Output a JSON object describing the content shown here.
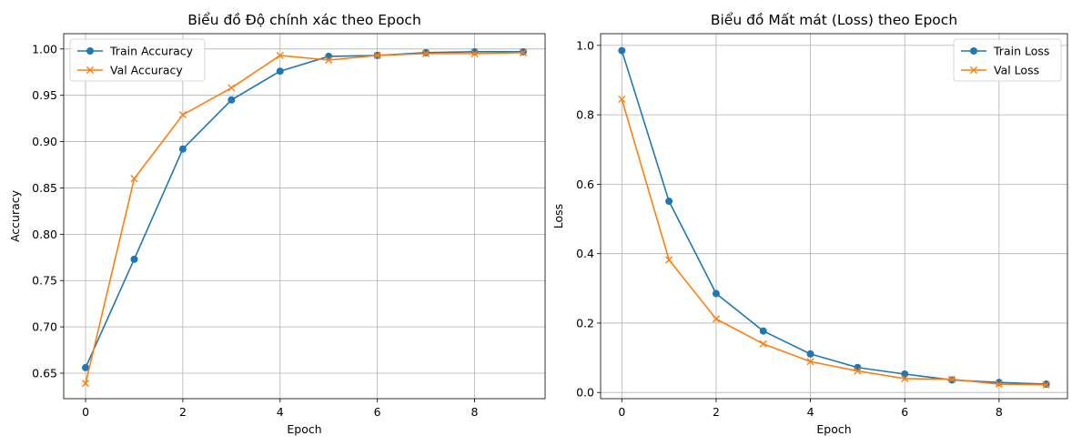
{
  "chart_data": [
    {
      "type": "line",
      "title": "Biểu đồ Độ chính xác theo Epoch",
      "xlabel": "Epoch",
      "ylabel": "Accuracy",
      "xlim": [
        -0.45,
        9.45
      ],
      "ylim": [
        0.6225,
        1.0165
      ],
      "xticks": [
        0,
        2,
        4,
        6,
        8
      ],
      "xtick_labels": [
        "0",
        "2",
        "4",
        "6",
        "8"
      ],
      "yticks": [
        0.65,
        0.7,
        0.75,
        0.8,
        0.85,
        0.9,
        0.95,
        1.0
      ],
      "ytick_labels": [
        "0.65",
        "0.70",
        "0.75",
        "0.80",
        "0.85",
        "0.90",
        "0.95",
        "1.00"
      ],
      "grid": true,
      "legend_position": "top-left",
      "x": [
        0,
        1,
        2,
        3,
        4,
        5,
        6,
        7,
        8,
        9
      ],
      "series": [
        {
          "name": "Train Accuracy",
          "color": "#1f77b4",
          "marker": "circle",
          "values": [
            0.656,
            0.773,
            0.892,
            0.945,
            0.976,
            0.992,
            0.993,
            0.996,
            0.997,
            0.997
          ]
        },
        {
          "name": "Val Accuracy",
          "color": "#ff7f0e",
          "marker": "x",
          "values": [
            0.639,
            0.86,
            0.929,
            0.958,
            0.993,
            0.988,
            0.993,
            0.995,
            0.995,
            0.996
          ]
        }
      ]
    },
    {
      "type": "line",
      "title": "Biểu đồ Mất mát (Loss) theo Epoch",
      "xlabel": "Epoch",
      "ylabel": "Loss",
      "xlim": [
        -0.45,
        9.45
      ],
      "ylim": [
        -0.0178,
        1.0337
      ],
      "xticks": [
        0,
        2,
        4,
        6,
        8
      ],
      "xtick_labels": [
        "0",
        "2",
        "4",
        "6",
        "8"
      ],
      "yticks": [
        0.0,
        0.2,
        0.4,
        0.6,
        0.8,
        1.0
      ],
      "ytick_labels": [
        "0.0",
        "0.2",
        "0.4",
        "0.6",
        "0.8",
        "1.0"
      ],
      "grid": true,
      "legend_position": "top-right",
      "x": [
        0,
        1,
        2,
        3,
        4,
        5,
        6,
        7,
        8,
        9
      ],
      "series": [
        {
          "name": "Train Loss",
          "color": "#1f77b4",
          "marker": "circle",
          "values": [
            0.985,
            0.551,
            0.285,
            0.177,
            0.111,
            0.072,
            0.053,
            0.036,
            0.029,
            0.024
          ]
        },
        {
          "name": "Val Loss",
          "color": "#ff7f0e",
          "marker": "x",
          "values": [
            0.845,
            0.382,
            0.212,
            0.14,
            0.089,
            0.062,
            0.04,
            0.038,
            0.024,
            0.022
          ]
        }
      ]
    }
  ]
}
